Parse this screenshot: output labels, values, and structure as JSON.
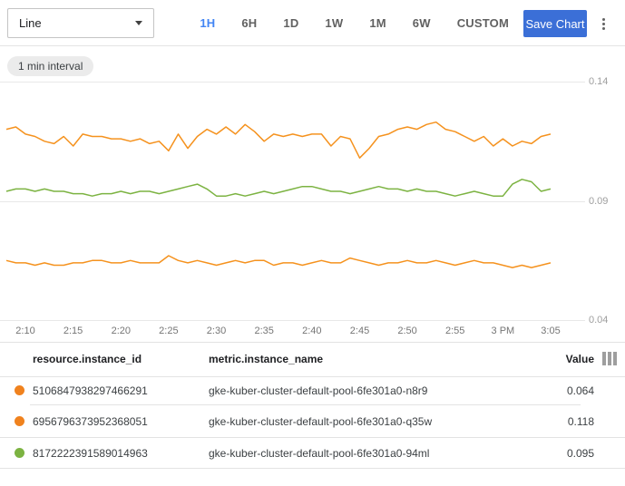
{
  "colors": {
    "accent_blue": "#4285f4",
    "save_button_blue": "#3b6fd7",
    "series_orange": "#f5921e",
    "series_green": "#7cb342"
  },
  "toolbar": {
    "chart_type_value": "Line",
    "ranges": [
      "1H",
      "6H",
      "1D",
      "1W",
      "1M",
      "6W",
      "CUSTOM"
    ],
    "selected_range": "1H",
    "save_label": "Save Chart",
    "more_icon": "kebab-menu-icon"
  },
  "chip": {
    "label": "1 min interval"
  },
  "chart_data": {
    "type": "line",
    "title": "",
    "xlabel": "",
    "ylabel": "",
    "interval": "1 min",
    "ylim": [
      0.04,
      0.14
    ],
    "yticks": [
      0.14,
      0.09,
      0.04
    ],
    "xticks": [
      "2:10",
      "2:15",
      "2:20",
      "2:25",
      "2:30",
      "2:35",
      "2:40",
      "2:45",
      "2:50",
      "2:55",
      "3 PM",
      "3:05"
    ],
    "grid": "horizontal",
    "legend_position": "table-below",
    "series": [
      {
        "name": "gke-kuber-cluster-default-pool-6fe301a0-q35w",
        "color": "#f5921e",
        "current_value": 0.118,
        "values": [
          0.12,
          0.121,
          0.118,
          0.117,
          0.115,
          0.114,
          0.117,
          0.113,
          0.118,
          0.117,
          0.117,
          0.116,
          0.116,
          0.115,
          0.116,
          0.114,
          0.115,
          0.111,
          0.118,
          0.112,
          0.117,
          0.12,
          0.118,
          0.121,
          0.118,
          0.122,
          0.119,
          0.115,
          0.118,
          0.117,
          0.118,
          0.117,
          0.118,
          0.118,
          0.113,
          0.117,
          0.116,
          0.108,
          0.112,
          0.117,
          0.118,
          0.12,
          0.121,
          0.12,
          0.122,
          0.123,
          0.12,
          0.119,
          0.117,
          0.115,
          0.117,
          0.113,
          0.116,
          0.113,
          0.115,
          0.114,
          0.117,
          0.118
        ]
      },
      {
        "name": "gke-kuber-cluster-default-pool-6fe301a0-94ml",
        "color": "#7cb342",
        "current_value": 0.095,
        "values": [
          0.094,
          0.095,
          0.095,
          0.094,
          0.095,
          0.094,
          0.094,
          0.093,
          0.093,
          0.092,
          0.093,
          0.093,
          0.094,
          0.093,
          0.094,
          0.094,
          0.093,
          0.094,
          0.095,
          0.096,
          0.097,
          0.095,
          0.092,
          0.092,
          0.093,
          0.092,
          0.093,
          0.094,
          0.093,
          0.094,
          0.095,
          0.096,
          0.096,
          0.095,
          0.094,
          0.094,
          0.093,
          0.094,
          0.095,
          0.096,
          0.095,
          0.095,
          0.094,
          0.095,
          0.094,
          0.094,
          0.093,
          0.092,
          0.093,
          0.094,
          0.093,
          0.092,
          0.092,
          0.097,
          0.099,
          0.098,
          0.094,
          0.095
        ]
      },
      {
        "name": "gke-kuber-cluster-default-pool-6fe301a0-n8r9",
        "color": "#f5921e",
        "current_value": 0.064,
        "values": [
          0.065,
          0.064,
          0.064,
          0.063,
          0.064,
          0.063,
          0.063,
          0.064,
          0.064,
          0.065,
          0.065,
          0.064,
          0.064,
          0.065,
          0.064,
          0.064,
          0.064,
          0.067,
          0.065,
          0.064,
          0.065,
          0.064,
          0.063,
          0.064,
          0.065,
          0.064,
          0.065,
          0.065,
          0.063,
          0.064,
          0.064,
          0.063,
          0.064,
          0.065,
          0.064,
          0.064,
          0.066,
          0.065,
          0.064,
          0.063,
          0.064,
          0.064,
          0.065,
          0.064,
          0.064,
          0.065,
          0.064,
          0.063,
          0.064,
          0.065,
          0.064,
          0.064,
          0.063,
          0.062,
          0.063,
          0.062,
          0.063,
          0.064
        ]
      }
    ]
  },
  "table": {
    "columns": [
      "resource.instance_id",
      "metric.instance_name",
      "Value"
    ],
    "columns_icon": "column-settings-icon",
    "rows": [
      {
        "dot_color": "#f0821e",
        "instance_id": "5106847938297466291",
        "instance_name": "gke-kuber-cluster-default-pool-6fe301a0-n8r9",
        "value": "0.064"
      },
      {
        "dot_color": "#f0821e",
        "instance_id": "6956796373952368051",
        "instance_name": "gke-kuber-cluster-default-pool-6fe301a0-q35w",
        "value": "0.118"
      },
      {
        "dot_color": "#7cb342",
        "instance_id": "8172222391589014963",
        "instance_name": "gke-kuber-cluster-default-pool-6fe301a0-94ml",
        "value": "0.095"
      }
    ]
  }
}
